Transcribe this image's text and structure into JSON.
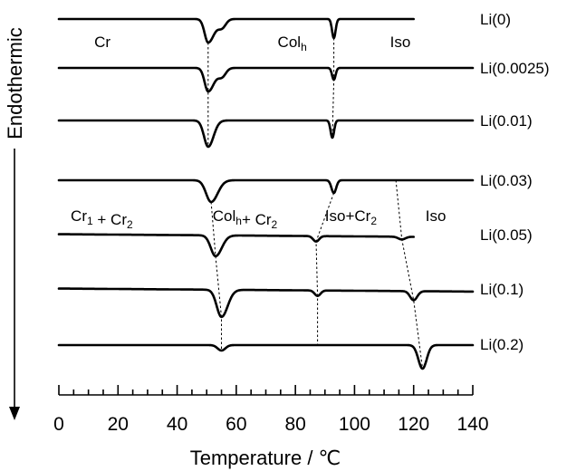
{
  "chart_data": {
    "type": "line",
    "title": "",
    "xlabel": "Temperature / ℃",
    "ylabel": "Endothermic",
    "xlim": [
      0,
      140
    ],
    "xticks": [
      0,
      20,
      40,
      60,
      80,
      100,
      120,
      140
    ],
    "x_minor_step": 5,
    "grid": false,
    "legend": "none",
    "y_axis_arrow": "down",
    "series": [
      {
        "name": "Li(0)",
        "peaks": [
          {
            "x": 50.5,
            "depth": 2.6,
            "width": 1.2,
            "skew": 1.7
          },
          {
            "x": 55.2,
            "depth": 0.9,
            "width": 1.3
          },
          {
            "x": 93.0,
            "depth": 2.1,
            "width": 0.6
          }
        ],
        "x_end": 120
      },
      {
        "name": "Li(0.0025)",
        "peaks": [
          {
            "x": 50.5,
            "depth": 2.6,
            "width": 1.2,
            "skew": 1.7
          },
          {
            "x": 55.2,
            "depth": 0.9,
            "width": 1.3
          },
          {
            "x": 93.0,
            "depth": 1.3,
            "width": 0.6
          }
        ]
      },
      {
        "name": "Li(0.01)",
        "peaks": [
          {
            "x": 50.5,
            "depth": 2.9,
            "width": 1.4,
            "skew": 1.3
          },
          {
            "x": 92.5,
            "depth": 1.9,
            "width": 0.6
          }
        ]
      },
      {
        "name": "Li(0.03)",
        "peaks": [
          {
            "x": 51.5,
            "depth": 2.4,
            "width": 1.7,
            "skew": 1.3
          },
          {
            "x": 93.0,
            "depth": 1.4,
            "width": 0.8
          }
        ]
      },
      {
        "name": "Li(0.05)",
        "peaks": [
          {
            "x": 53.0,
            "depth": 2.3,
            "width": 1.6,
            "skew": 1.3
          },
          {
            "x": 87.0,
            "depth": 0.6,
            "width": 1.0
          },
          {
            "x": 116.0,
            "depth": 0.3,
            "width": 1.2
          }
        ],
        "x_end": 120,
        "slope": 0.012
      },
      {
        "name": "Li(0.1)",
        "peaks": [
          {
            "x": 55.0,
            "depth": 3.0,
            "width": 1.6,
            "skew": 1.3
          },
          {
            "x": 87.5,
            "depth": 0.6,
            "width": 1.0
          },
          {
            "x": 120.0,
            "depth": 1.0,
            "width": 1.2
          }
        ],
        "slope": 0.012
      },
      {
        "name": "Li(0.2)",
        "peaks": [
          {
            "x": 55.0,
            "depth": 0.6,
            "width": 1.3
          },
          {
            "x": 123.0,
            "depth": 2.6,
            "width": 1.4
          }
        ]
      }
    ],
    "transition_guides": [
      {
        "points": [
          [
            0,
            50.5
          ],
          [
            1,
            50.5
          ],
          [
            2,
            50.5
          ]
        ]
      },
      {
        "points": [
          [
            0,
            93.0
          ],
          [
            1,
            93.0
          ],
          [
            2,
            92.5
          ]
        ]
      },
      {
        "points": [
          [
            3,
            51.5
          ],
          [
            4,
            53.0
          ],
          [
            5,
            55.0
          ],
          [
            6,
            55.0
          ]
        ]
      },
      {
        "points": [
          [
            3,
            93.0
          ],
          [
            4,
            87.0
          ],
          [
            5,
            87.5
          ],
          [
            6,
            87.5
          ]
        ]
      },
      {
        "points": [
          [
            3,
            114.0
          ],
          [
            4,
            116.0
          ],
          [
            5,
            120.0
          ],
          [
            6,
            123.0
          ]
        ]
      }
    ],
    "phase_labels": {
      "upper": [
        {
          "main": "Cr",
          "x": 12
        },
        {
          "main": "Col",
          "sub": "h",
          "x": 74
        },
        {
          "main": "Iso",
          "x": 112
        }
      ],
      "lower": [
        {
          "main": "Cr",
          "sub": "1",
          "main2": " + Cr",
          "sub2": "2",
          "x": 4
        },
        {
          "main": "Col",
          "sub": "h",
          "main2": "+ Cr",
          "sub2": "2",
          "x": 52
        },
        {
          "main": "Iso+Cr",
          "sub": "2",
          "x": 90
        },
        {
          "main": "Iso",
          "x": 124
        }
      ]
    }
  }
}
